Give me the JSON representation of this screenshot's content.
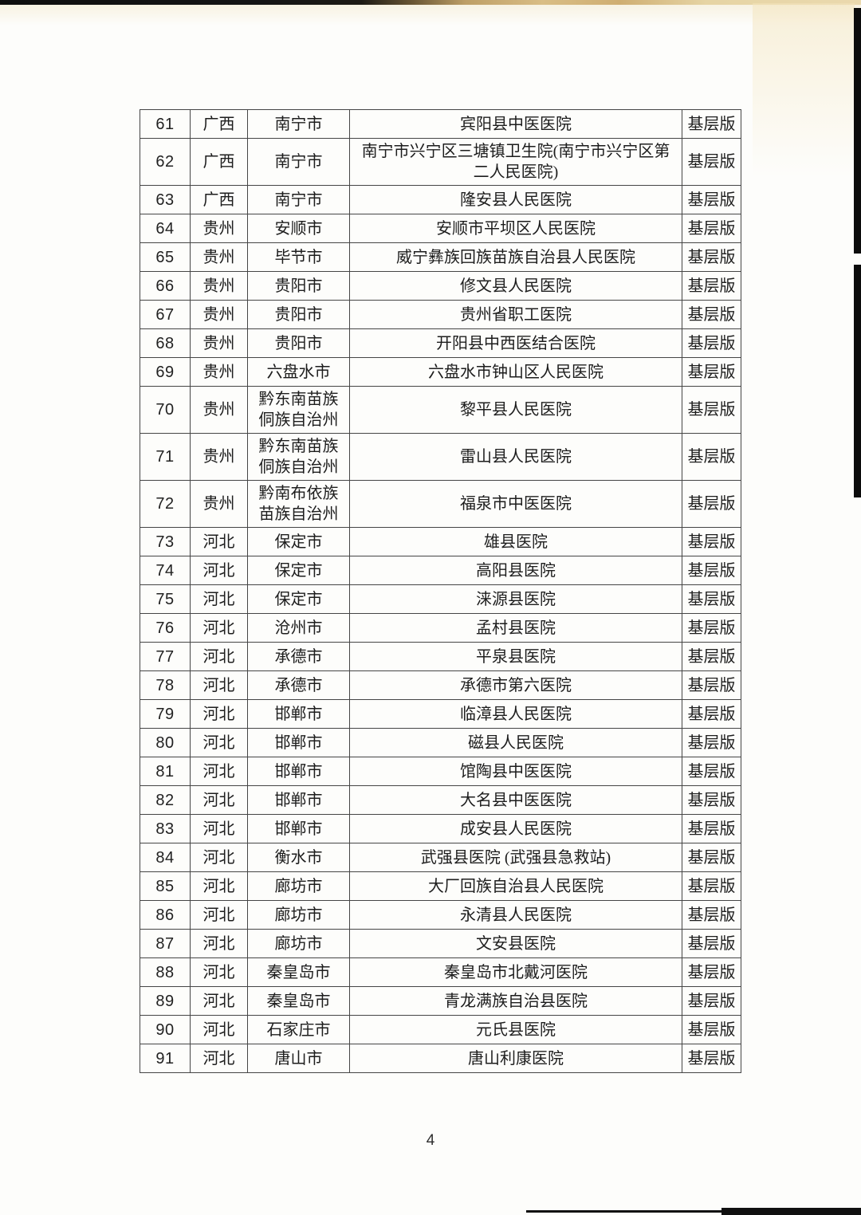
{
  "page": {
    "number": "4"
  },
  "table": {
    "rows": [
      {
        "no": "61",
        "province": "广西",
        "city": "南宁市",
        "hospital": "宾阳县中医医院",
        "version": "基层版"
      },
      {
        "no": "62",
        "province": "广西",
        "city": "南宁市",
        "hospital": "南宁市兴宁区三塘镇卫生院(南宁市兴宁区第二人民医院)",
        "version": "基层版"
      },
      {
        "no": "63",
        "province": "广西",
        "city": "南宁市",
        "hospital": "隆安县人民医院",
        "version": "基层版"
      },
      {
        "no": "64",
        "province": "贵州",
        "city": "安顺市",
        "hospital": "安顺市平坝区人民医院",
        "version": "基层版"
      },
      {
        "no": "65",
        "province": "贵州",
        "city": "毕节市",
        "hospital": "威宁彝族回族苗族自治县人民医院",
        "version": "基层版"
      },
      {
        "no": "66",
        "province": "贵州",
        "city": "贵阳市",
        "hospital": "修文县人民医院",
        "version": "基层版"
      },
      {
        "no": "67",
        "province": "贵州",
        "city": "贵阳市",
        "hospital": "贵州省职工医院",
        "version": "基层版"
      },
      {
        "no": "68",
        "province": "贵州",
        "city": "贵阳市",
        "hospital": "开阳县中西医结合医院",
        "version": "基层版"
      },
      {
        "no": "69",
        "province": "贵州",
        "city": "六盘水市",
        "hospital": "六盘水市钟山区人民医院",
        "version": "基层版"
      },
      {
        "no": "70",
        "province": "贵州",
        "city": "黔东南苗族侗族自治州",
        "hospital": "黎平县人民医院",
        "version": "基层版"
      },
      {
        "no": "71",
        "province": "贵州",
        "city": "黔东南苗族侗族自治州",
        "hospital": "雷山县人民医院",
        "version": "基层版"
      },
      {
        "no": "72",
        "province": "贵州",
        "city": "黔南布依族苗族自治州",
        "hospital": "福泉市中医医院",
        "version": "基层版"
      },
      {
        "no": "73",
        "province": "河北",
        "city": "保定市",
        "hospital": "雄县医院",
        "version": "基层版"
      },
      {
        "no": "74",
        "province": "河北",
        "city": "保定市",
        "hospital": "高阳县医院",
        "version": "基层版"
      },
      {
        "no": "75",
        "province": "河北",
        "city": "保定市",
        "hospital": "涞源县医院",
        "version": "基层版"
      },
      {
        "no": "76",
        "province": "河北",
        "city": "沧州市",
        "hospital": "孟村县医院",
        "version": "基层版"
      },
      {
        "no": "77",
        "province": "河北",
        "city": "承德市",
        "hospital": "平泉县医院",
        "version": "基层版"
      },
      {
        "no": "78",
        "province": "河北",
        "city": "承德市",
        "hospital": "承德市第六医院",
        "version": "基层版"
      },
      {
        "no": "79",
        "province": "河北",
        "city": "邯郸市",
        "hospital": "临漳县人民医院",
        "version": "基层版"
      },
      {
        "no": "80",
        "province": "河北",
        "city": "邯郸市",
        "hospital": "磁县人民医院",
        "version": "基层版"
      },
      {
        "no": "81",
        "province": "河北",
        "city": "邯郸市",
        "hospital": "馆陶县中医医院",
        "version": "基层版"
      },
      {
        "no": "82",
        "province": "河北",
        "city": "邯郸市",
        "hospital": "大名县中医医院",
        "version": "基层版"
      },
      {
        "no": "83",
        "province": "河北",
        "city": "邯郸市",
        "hospital": "成安县人民医院",
        "version": "基层版"
      },
      {
        "no": "84",
        "province": "河北",
        "city": "衡水市",
        "hospital": "武强县医院 (武强县急救站)",
        "version": "基层版"
      },
      {
        "no": "85",
        "province": "河北",
        "city": "廊坊市",
        "hospital": "大厂回族自治县人民医院",
        "version": "基层版"
      },
      {
        "no": "86",
        "province": "河北",
        "city": "廊坊市",
        "hospital": "永清县人民医院",
        "version": "基层版"
      },
      {
        "no": "87",
        "province": "河北",
        "city": "廊坊市",
        "hospital": "文安县医院",
        "version": "基层版"
      },
      {
        "no": "88",
        "province": "河北",
        "city": "秦皇岛市",
        "hospital": "秦皇岛市北戴河医院",
        "version": "基层版"
      },
      {
        "no": "89",
        "province": "河北",
        "city": "秦皇岛市",
        "hospital": "青龙满族自治县医院",
        "version": "基层版"
      },
      {
        "no": "90",
        "province": "河北",
        "city": "石家庄市",
        "hospital": "元氏县医院",
        "version": "基层版"
      },
      {
        "no": "91",
        "province": "河北",
        "city": "唐山市",
        "hospital": "唐山利康医院",
        "version": "基层版"
      }
    ]
  }
}
